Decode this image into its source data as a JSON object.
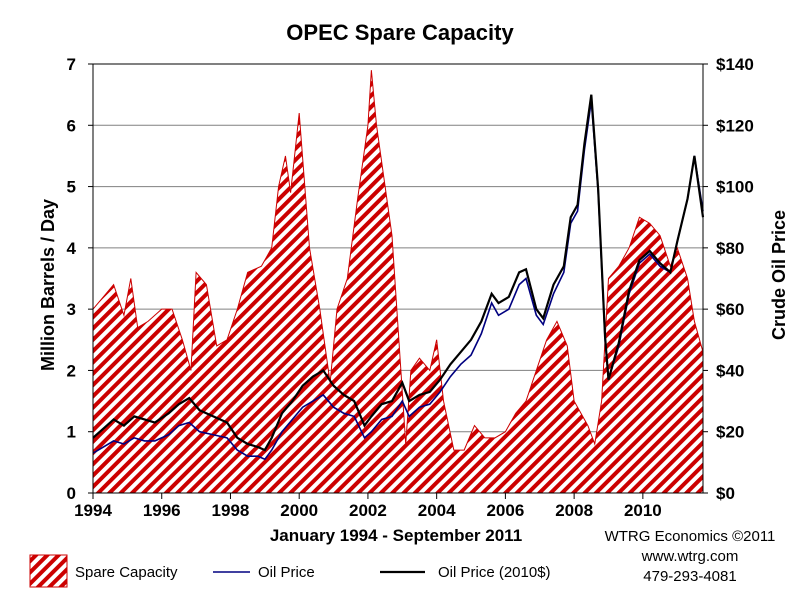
{
  "chart_data": {
    "type": "line",
    "title": "OPEC Spare Capacity",
    "xlabel": "January 1994 - September 2011",
    "ylabel_left": "Million Barrels / Day",
    "ylabel_right": "Crude Oil Price",
    "xlim": [
      1994,
      2011.75
    ],
    "ylim_left": [
      0,
      7
    ],
    "ylim_right": [
      0,
      140
    ],
    "x_ticks": [
      "1994",
      "1996",
      "1998",
      "2000",
      "2002",
      "2004",
      "2006",
      "2008",
      "2010"
    ],
    "y_left_ticks": [
      "0",
      "1",
      "2",
      "3",
      "4",
      "5",
      "6",
      "7"
    ],
    "y_right_ticks": [
      "$0",
      "$20",
      "$40",
      "$60",
      "$80",
      "$100",
      "$120",
      "$140"
    ],
    "grid": true,
    "series": [
      {
        "name": "Spare Capacity",
        "kind": "area",
        "axis": "left",
        "fill_color": "#cc0000",
        "x": [
          1994,
          1994.3,
          1994.6,
          1994.9,
          1995.1,
          1995.3,
          1995.6,
          1996,
          1996.3,
          1996.6,
          1996.85,
          1997,
          1997.3,
          1997.6,
          1997.9,
          1998.2,
          1998.5,
          1998.9,
          1999.2,
          1999.4,
          1999.6,
          1999.75,
          2000,
          2000.3,
          2000.6,
          2000.9,
          2001.1,
          2001.4,
          2001.7,
          2002,
          2002.1,
          2002.25,
          2002.5,
          2002.7,
          2002.9,
          2003.1,
          2003.25,
          2003.5,
          2003.8,
          2004,
          2004.2,
          2004.5,
          2004.8,
          2005.1,
          2005.4,
          2005.7,
          2006,
          2006.3,
          2006.6,
          2006.9,
          2007.2,
          2007.5,
          2007.8,
          2008,
          2008.2,
          2008.4,
          2008.6,
          2008.8,
          2009,
          2009.3,
          2009.6,
          2009.9,
          2010.2,
          2010.5,
          2010.8,
          2011,
          2011.3,
          2011.5,
          2011.75
        ],
        "values": [
          3.0,
          3.2,
          3.4,
          2.9,
          3.5,
          2.7,
          2.8,
          3.0,
          3.0,
          2.5,
          2.0,
          3.6,
          3.4,
          2.4,
          2.5,
          3.0,
          3.6,
          3.7,
          4.0,
          5.0,
          5.5,
          4.9,
          6.2,
          4.0,
          3.0,
          1.8,
          3.0,
          3.5,
          4.8,
          6.0,
          6.9,
          6.0,
          5.0,
          4.2,
          2.5,
          0.8,
          2.0,
          2.2,
          2.0,
          2.5,
          1.5,
          0.7,
          0.7,
          1.1,
          0.9,
          0.9,
          1.0,
          1.3,
          1.5,
          2.0,
          2.5,
          2.8,
          2.4,
          1.5,
          1.3,
          1.1,
          0.8,
          1.5,
          3.5,
          3.7,
          4.0,
          4.5,
          4.4,
          4.2,
          3.7,
          4.0,
          3.5,
          2.8,
          2.3
        ]
      },
      {
        "name": "Oil Price",
        "kind": "line",
        "axis": "right",
        "color": "#000080",
        "x": [
          1994,
          1994.3,
          1994.6,
          1994.9,
          1995.2,
          1995.5,
          1995.8,
          1996.2,
          1996.5,
          1996.8,
          1997.1,
          1997.5,
          1997.9,
          1998.2,
          1998.5,
          1998.8,
          1999.0,
          1999.2,
          1999.5,
          1999.8,
          2000.1,
          2000.4,
          2000.7,
          2001.0,
          2001.3,
          2001.6,
          2001.9,
          2002.1,
          2002.4,
          2002.7,
          2003.0,
          2003.2,
          2003.5,
          2003.8,
          2004.1,
          2004.4,
          2004.7,
          2005.0,
          2005.3,
          2005.6,
          2005.8,
          2006.1,
          2006.4,
          2006.6,
          2006.9,
          2007.1,
          2007.4,
          2007.7,
          2007.9,
          2008.1,
          2008.3,
          2008.5,
          2008.7,
          2008.9,
          2009.0,
          2009.3,
          2009.6,
          2009.9,
          2010.2,
          2010.5,
          2010.8,
          2011.0,
          2011.3,
          2011.5,
          2011.75
        ],
        "values": [
          13,
          15,
          17,
          16,
          18,
          17,
          17,
          19,
          22,
          23,
          20,
          19,
          18,
          14,
          12,
          12,
          11,
          14,
          20,
          24,
          28,
          30,
          32,
          28,
          26,
          25,
          18,
          20,
          24,
          25,
          30,
          25,
          28,
          29,
          33,
          38,
          42,
          45,
          52,
          62,
          58,
          60,
          68,
          70,
          58,
          55,
          65,
          72,
          88,
          92,
          112,
          128,
          98,
          50,
          37,
          48,
          65,
          75,
          78,
          74,
          72,
          82,
          96,
          110,
          92
        ]
      },
      {
        "name": "Oil Price (2010$)",
        "kind": "line",
        "axis": "right",
        "color": "#000000",
        "x": [
          1994,
          1994.3,
          1994.6,
          1994.9,
          1995.2,
          1995.5,
          1995.8,
          1996.2,
          1996.5,
          1996.8,
          1997.1,
          1997.5,
          1997.9,
          1998.2,
          1998.5,
          1998.8,
          1999.0,
          1999.2,
          1999.5,
          1999.8,
          2000.1,
          2000.4,
          2000.7,
          2001.0,
          2001.3,
          2001.6,
          2001.9,
          2002.1,
          2002.4,
          2002.7,
          2003.0,
          2003.2,
          2003.5,
          2003.8,
          2004.1,
          2004.4,
          2004.7,
          2005.0,
          2005.3,
          2005.6,
          2005.8,
          2006.1,
          2006.4,
          2006.6,
          2006.9,
          2007.1,
          2007.4,
          2007.7,
          2007.9,
          2008.1,
          2008.3,
          2008.5,
          2008.7,
          2008.9,
          2009.0,
          2009.3,
          2009.6,
          2009.9,
          2010.2,
          2010.5,
          2010.8,
          2011.0,
          2011.3,
          2011.5,
          2011.75
        ],
        "values": [
          18,
          21,
          24,
          22,
          25,
          24,
          23,
          26,
          29,
          31,
          27,
          25,
          23,
          18,
          16,
          15,
          14,
          18,
          26,
          30,
          35,
          38,
          40,
          35,
          32,
          30,
          22,
          25,
          29,
          30,
          36,
          30,
          32,
          33,
          37,
          42,
          46,
          50,
          56,
          65,
          62,
          64,
          72,
          73,
          60,
          57,
          68,
          74,
          90,
          94,
          114,
          130,
          99,
          51,
          37,
          49,
          66,
          76,
          79,
          75,
          72,
          82,
          96,
          110,
          90
        ]
      }
    ],
    "credits": [
      "WTRG Economics  ©2011",
      "www.wtrg.com",
      "479-293-4081"
    ]
  }
}
